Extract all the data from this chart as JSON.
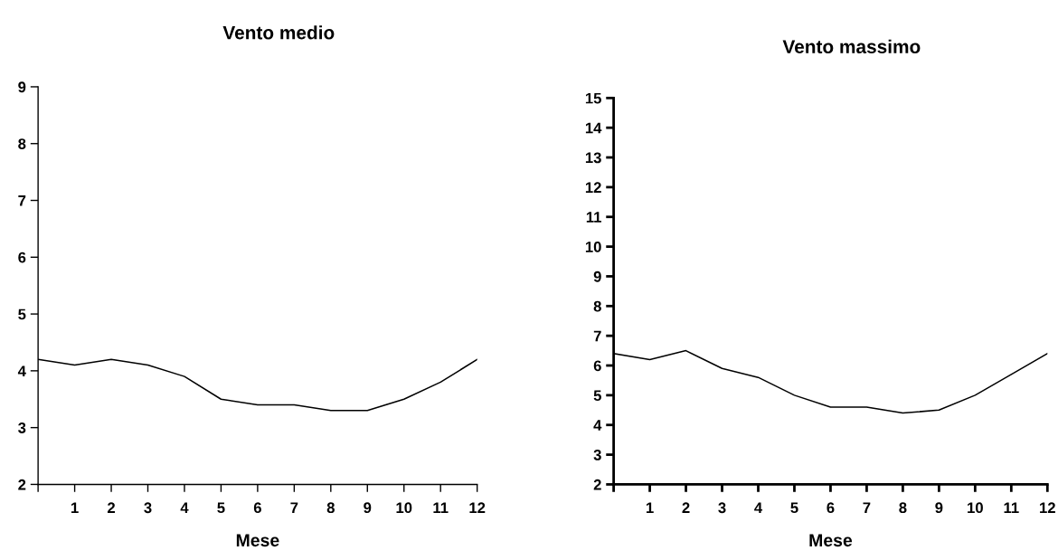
{
  "chart_data": [
    {
      "type": "line",
      "title": "Vento medio",
      "xlabel": "Mese",
      "x": [
        0,
        1,
        2,
        3,
        4,
        5,
        6,
        7,
        8,
        9,
        10,
        11,
        12
      ],
      "series": [
        {
          "color": "#000000",
          "values": [
            4.2,
            4.1,
            4.2,
            4.1,
            3.9,
            3.5,
            3.4,
            3.4,
            3.3,
            3.3,
            3.5,
            3.8,
            4.2
          ]
        }
      ],
      "xlim": [
        0,
        12
      ],
      "xticks": [
        {
          "value": 0,
          "label": null
        },
        1,
        2,
        3,
        4,
        5,
        6,
        7,
        8,
        9,
        10,
        11,
        12
      ],
      "ylim": [
        2,
        9
      ],
      "yticks": [
        2,
        3,
        4,
        5,
        6,
        7,
        8,
        9
      ],
      "grid": false,
      "marker": "none",
      "line_style": "solid"
    },
    {
      "type": "line",
      "title": "Vento massimo",
      "xlabel": "Mese",
      "x": [
        0,
        1,
        2,
        3,
        4,
        5,
        6,
        7,
        8,
        9,
        10,
        11,
        12
      ],
      "series": [
        {
          "color": "#000000",
          "values": [
            6.4,
            6.2,
            6.5,
            5.9,
            5.6,
            5.0,
            4.6,
            4.6,
            4.4,
            4.5,
            5.0,
            5.7,
            6.4
          ]
        }
      ],
      "xlim": [
        0,
        12
      ],
      "xticks": [
        {
          "value": 0,
          "label": null
        },
        1,
        2,
        3,
        4,
        5,
        6,
        7,
        8,
        9,
        10,
        11,
        12
      ],
      "ylim": [
        2,
        15
      ],
      "yticks": [
        2,
        3,
        4,
        5,
        6,
        7,
        8,
        9,
        10,
        11,
        12,
        13,
        14,
        15
      ],
      "grid": false,
      "marker": "none",
      "line_style": "solid"
    }
  ]
}
